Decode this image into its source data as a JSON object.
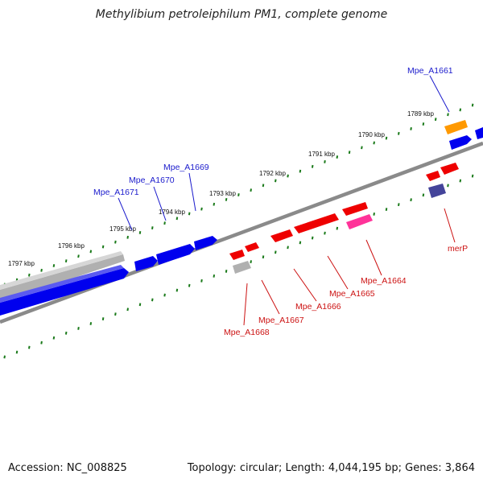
{
  "title": "Methylibium petroleiphilum PM1, complete genome",
  "footer": {
    "accession_label": "Accession:",
    "accession": "NC_008825",
    "topology_label": "Topology:",
    "topology": "circular",
    "length_label": "Length:",
    "length": "4,044,195 bp",
    "genes_label": "Genes:",
    "genes": "3,864"
  },
  "scale_labels": [
    "1789 kbp",
    "1790 kbp",
    "1791 kbp",
    "1792 kbp",
    "1793 kbp",
    "1794 kbp",
    "1795 kbp",
    "1796 kbp",
    "1797 kbp"
  ],
  "gene_labels_forward": [
    "Mpe_A1661",
    "Mpe_A1669",
    "Mpe_A1670",
    "Mpe_A1671"
  ],
  "gene_labels_reverse": [
    "Mpe_A1664",
    "Mpe_A1665",
    "Mpe_A1666",
    "Mpe_A1667",
    "Mpe_A1668",
    "merP"
  ],
  "colors": {
    "forward_gene": "#0000ee",
    "forward_label": "#1a1acc",
    "reverse_gene": "#ee0000",
    "reverse_label": "#cc1111",
    "pseudo_gene": "#b0b0b0",
    "highlight_gene": "#ff9900",
    "pink_gene": "#ff3399",
    "purple_gene": "#44449a",
    "tick": "#1a7a1a",
    "backbone": "#8a8a8a"
  }
}
